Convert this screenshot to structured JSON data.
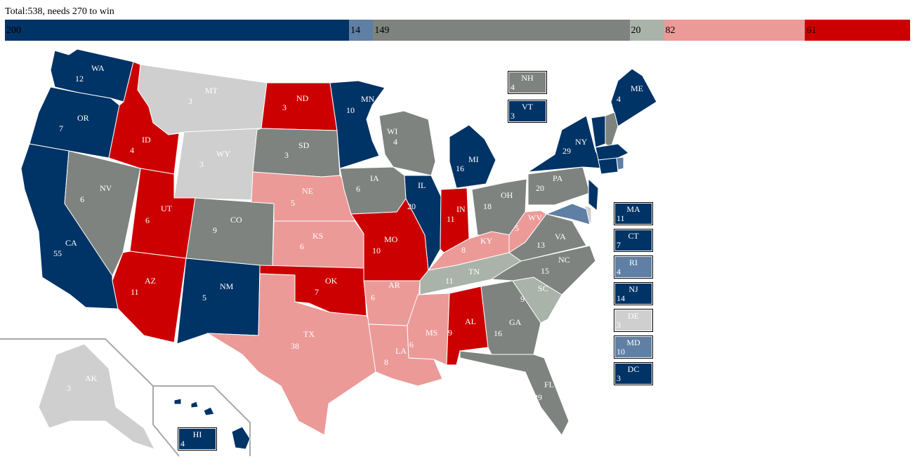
{
  "total_label": "Total:538, needs 270 to win",
  "colors": {
    "safe_dem": "#003366",
    "likely_dem": "#5f7fa4",
    "tossup": "#7e837f",
    "lean_gop": "#eb9a98",
    "safe_gop": "#cc0000",
    "tilt": "#a9b3a9",
    "undecided": "#cfcfcf"
  },
  "tally": [
    {
      "value": "200",
      "category": "safe_dem",
      "color": "#003366",
      "text_color": "#000000"
    },
    {
      "value": "14",
      "category": "likely_dem",
      "color": "#5f7fa4",
      "text_color": "#000000"
    },
    {
      "value": "149",
      "category": "tossup",
      "color": "#7e837f",
      "text_color": "#000000"
    },
    {
      "value": "20",
      "category": "tilt",
      "color": "#a9b3a9",
      "text_color": "#000000"
    },
    {
      "value": "82",
      "category": "lean_gop",
      "color": "#eb9a98",
      "text_color": "#000000"
    },
    {
      "value": "61",
      "category": "safe_gop",
      "color": "#cc0000",
      "text_color": "#000000"
    }
  ],
  "states": [
    {
      "abbr": "WA",
      "ev": "12",
      "cat": "safe_dem"
    },
    {
      "abbr": "OR",
      "ev": "7",
      "cat": "safe_dem"
    },
    {
      "abbr": "CA",
      "ev": "55",
      "cat": "safe_dem"
    },
    {
      "abbr": "ID",
      "ev": "4",
      "cat": "safe_gop"
    },
    {
      "abbr": "NV",
      "ev": "6",
      "cat": "tossup"
    },
    {
      "abbr": "MT",
      "ev": "3",
      "cat": "undecided"
    },
    {
      "abbr": "WY",
      "ev": "3",
      "cat": "undecided"
    },
    {
      "abbr": "UT",
      "ev": "6",
      "cat": "safe_gop"
    },
    {
      "abbr": "AZ",
      "ev": "11",
      "cat": "safe_gop"
    },
    {
      "abbr": "CO",
      "ev": "9",
      "cat": "tossup"
    },
    {
      "abbr": "NM",
      "ev": "5",
      "cat": "safe_dem"
    },
    {
      "abbr": "ND",
      "ev": "3",
      "cat": "safe_gop"
    },
    {
      "abbr": "SD",
      "ev": "3",
      "cat": "tossup"
    },
    {
      "abbr": "NE",
      "ev": "5",
      "cat": "lean_gop"
    },
    {
      "abbr": "KS",
      "ev": "6",
      "cat": "lean_gop"
    },
    {
      "abbr": "OK",
      "ev": "7",
      "cat": "safe_gop"
    },
    {
      "abbr": "TX",
      "ev": "38",
      "cat": "lean_gop"
    },
    {
      "abbr": "MN",
      "ev": "10",
      "cat": "safe_dem"
    },
    {
      "abbr": "IA",
      "ev": "6",
      "cat": "tossup"
    },
    {
      "abbr": "MO",
      "ev": "10",
      "cat": "safe_gop"
    },
    {
      "abbr": "AR",
      "ev": "6",
      "cat": "lean_gop"
    },
    {
      "abbr": "LA",
      "ev": "8",
      "cat": "lean_gop"
    },
    {
      "abbr": "WI",
      "ev": "4",
      "cat": "tossup"
    },
    {
      "abbr": "IL",
      "ev": "20",
      "cat": "safe_dem"
    },
    {
      "abbr": "MI",
      "ev": "16",
      "cat": "safe_dem"
    },
    {
      "abbr": "IN",
      "ev": "11",
      "cat": "safe_gop"
    },
    {
      "abbr": "OH",
      "ev": "18",
      "cat": "tossup"
    },
    {
      "abbr": "KY",
      "ev": "8",
      "cat": "lean_gop"
    },
    {
      "abbr": "TN",
      "ev": "11",
      "cat": "tilt"
    },
    {
      "abbr": "MS",
      "ev": "6",
      "cat": "lean_gop"
    },
    {
      "abbr": "AL",
      "ev": "9",
      "cat": "safe_gop"
    },
    {
      "abbr": "GA",
      "ev": "16",
      "cat": "tossup"
    },
    {
      "abbr": "FL",
      "ev": "29",
      "cat": "tossup"
    },
    {
      "abbr": "SC",
      "ev": "9",
      "cat": "tilt"
    },
    {
      "abbr": "NC",
      "ev": "15",
      "cat": "tossup"
    },
    {
      "abbr": "VA",
      "ev": "13",
      "cat": "tossup"
    },
    {
      "abbr": "WV",
      "ev": "5",
      "cat": "lean_gop"
    },
    {
      "abbr": "PA",
      "ev": "20",
      "cat": "tossup"
    },
    {
      "abbr": "NY",
      "ev": "29",
      "cat": "safe_dem"
    },
    {
      "abbr": "ME",
      "ev": "4",
      "cat": "safe_dem"
    },
    {
      "abbr": "AK",
      "ev": "3",
      "cat": "undecided"
    }
  ],
  "small_states": [
    {
      "abbr": "NH",
      "ev": "4",
      "cat": "tossup"
    },
    {
      "abbr": "VT",
      "ev": "3",
      "cat": "safe_dem"
    },
    {
      "abbr": "MA",
      "ev": "11",
      "cat": "safe_dem"
    },
    {
      "abbr": "CT",
      "ev": "7",
      "cat": "safe_dem"
    },
    {
      "abbr": "RI",
      "ev": "4",
      "cat": "likely_dem"
    },
    {
      "abbr": "NJ",
      "ev": "14",
      "cat": "safe_dem"
    },
    {
      "abbr": "DE",
      "ev": "3",
      "cat": "undecided"
    },
    {
      "abbr": "MD",
      "ev": "10",
      "cat": "likely_dem"
    },
    {
      "abbr": "DC",
      "ev": "3",
      "cat": "safe_dem"
    },
    {
      "abbr": "HI",
      "ev": "4",
      "cat": "safe_dem"
    }
  ]
}
